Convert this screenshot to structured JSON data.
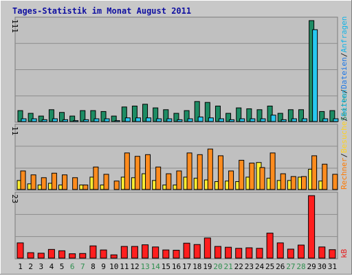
{
  "chart_data": [
    {
      "type": "bar",
      "title": "Tages-Statistik im Monat August 2011",
      "ymax_label": "111",
      "ylim": [
        0,
        111
      ],
      "categories": [
        "1",
        "2",
        "3",
        "4",
        "5",
        "6",
        "7",
        "8",
        "9",
        "10",
        "11",
        "12",
        "13",
        "14",
        "15",
        "16",
        "17",
        "18",
        "19",
        "20",
        "21",
        "22",
        "23",
        "24",
        "25",
        "26",
        "27",
        "28",
        "29",
        "30",
        "31"
      ],
      "weekend_days": [
        "6",
        "7",
        "13",
        "14",
        "20",
        "21",
        "27",
        "28"
      ],
      "legend": [
        "Anfragen",
        "/",
        "Dateien",
        "/",
        "Seiten"
      ],
      "series": [
        {
          "name": "Anfragen",
          "color": "#1e8c64",
          "values": [
            12,
            9,
            6,
            13,
            10,
            6,
            12,
            12,
            11,
            6,
            16,
            17,
            19,
            15,
            13,
            9,
            12,
            22,
            21,
            17,
            9,
            15,
            14,
            13,
            17,
            9,
            13,
            13,
            111,
            11,
            12
          ]
        },
        {
          "name": "Dateien",
          "color": "#28c8f0",
          "values": [
            3,
            3,
            2,
            3,
            2,
            1,
            2,
            3,
            3,
            1,
            4,
            4,
            4,
            3,
            3,
            2,
            3,
            5,
            4,
            3,
            2,
            3,
            3,
            3,
            7,
            2,
            3,
            3,
            101,
            3,
            3
          ]
        }
      ]
    },
    {
      "type": "bar",
      "ymax_label": "11",
      "ylim": [
        0,
        11
      ],
      "categories": [
        "1",
        "2",
        "3",
        "4",
        "5",
        "6",
        "7",
        "8",
        "9",
        "10",
        "11",
        "12",
        "13",
        "14",
        "15",
        "16",
        "17",
        "18",
        "19",
        "20",
        "21",
        "22",
        "23",
        "24",
        "25",
        "26",
        "27",
        "28",
        "29",
        "30",
        "31"
      ],
      "legend": [
        "Rechner",
        "/",
        "Besuche",
        "/",
        "Seiten"
      ],
      "series": [
        {
          "name": "Besuche",
          "color": "#ffee33",
          "values": [
            1.6,
            1.0,
            0.8,
            1.1,
            0.8,
            0.0,
            0.8,
            2.2,
            0.8,
            0.0,
            2.2,
            2.1,
            2.8,
            1.6,
            0.8,
            0.8,
            2.2,
            2.0,
            1.7,
            1.4,
            1.5,
            1.4,
            2.2,
            4.8,
            2.0,
            1.6,
            1.6,
            2.2,
            3.6,
            1.5,
            0.0
          ]
        },
        {
          "name": "Rechner",
          "color": "#ff8c1e",
          "values": [
            3.3,
            2.6,
            2.1,
            2.9,
            2.6,
            2.1,
            0.8,
            4.0,
            2.7,
            1.5,
            6.5,
            5.9,
            6.2,
            4.0,
            2.8,
            3.3,
            6.5,
            6.2,
            7.2,
            6.0,
            3.3,
            5.2,
            4.7,
            3.9,
            6.5,
            2.8,
            2.3,
            2.3,
            6.0,
            4.5,
            2.7
          ]
        }
      ]
    },
    {
      "type": "bar",
      "ymax_label": "23",
      "ylim": [
        0,
        23
      ],
      "categories": [
        "1",
        "2",
        "3",
        "4",
        "5",
        "6",
        "7",
        "8",
        "9",
        "10",
        "11",
        "12",
        "13",
        "14",
        "15",
        "16",
        "17",
        "18",
        "19",
        "20",
        "21",
        "22",
        "23",
        "24",
        "25",
        "26",
        "27",
        "28",
        "29",
        "30",
        "31"
      ],
      "legend": [
        "kB"
      ],
      "series": [
        {
          "name": "kB",
          "color": "#ff1e1e",
          "values": [
            5.6,
            2.0,
            1.8,
            3.2,
            2.7,
            1.6,
            1.7,
            4.5,
            3.0,
            1.2,
            4.3,
            4.3,
            4.9,
            4.1,
            3.0,
            2.9,
            5.5,
            5.0,
            7.4,
            4.3,
            4.0,
            3.6,
            3.8,
            3.6,
            9.2,
            5.6,
            3.3,
            4.8,
            23,
            4.1,
            3.1
          ]
        }
      ]
    }
  ]
}
